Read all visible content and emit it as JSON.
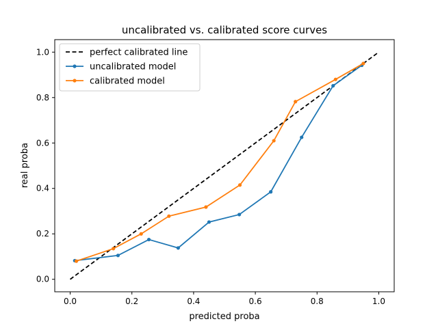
{
  "chart_data": {
    "type": "line",
    "title": "uncalibrated vs. calibrated score curves",
    "xlabel": "predicted proba",
    "ylabel": "real proba",
    "xlim": [
      -0.05,
      1.05
    ],
    "ylim": [
      -0.055,
      1.055
    ],
    "xticks": [
      "0.0",
      "0.2",
      "0.4",
      "0.6",
      "0.8",
      "1.0"
    ],
    "yticks": [
      "0.0",
      "0.2",
      "0.4",
      "0.6",
      "0.8",
      "1.0"
    ],
    "grid": false,
    "legend_position": "top-left",
    "series": [
      {
        "name": "perfect calibrated line",
        "color": "#000000",
        "style": "dashed",
        "marker": "none",
        "x": [
          0.0,
          1.0
        ],
        "y": [
          0.0,
          1.0
        ]
      },
      {
        "name": "uncalibrated model",
        "color": "#1f77b4",
        "style": "solid",
        "marker": "dot",
        "x": [
          0.015,
          0.155,
          0.255,
          0.35,
          0.45,
          0.548,
          0.65,
          0.75,
          0.852,
          0.945
        ],
        "y": [
          0.082,
          0.105,
          0.175,
          0.138,
          0.252,
          0.285,
          0.385,
          0.625,
          0.852,
          0.942
        ]
      },
      {
        "name": "calibrated model",
        "color": "#ff7f0e",
        "style": "solid",
        "marker": "dot",
        "x": [
          0.02,
          0.14,
          0.23,
          0.32,
          0.44,
          0.55,
          0.66,
          0.73,
          0.86,
          0.95
        ],
        "y": [
          0.08,
          0.135,
          0.2,
          0.278,
          0.318,
          0.415,
          0.61,
          0.782,
          0.88,
          0.95
        ]
      }
    ]
  }
}
